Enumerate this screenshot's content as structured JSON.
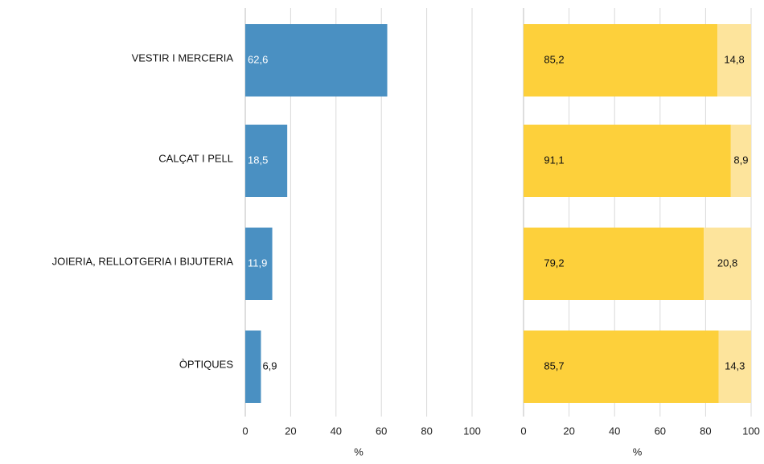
{
  "chart_data": [
    {
      "type": "bar",
      "orientation": "horizontal",
      "categories": [
        "VESTIR I MERCERIA",
        "CALÇAT I PELL",
        "JOIERIA, RELLOTGERIA I BIJUTERIA",
        "ÒPTIQUES"
      ],
      "values": [
        62.6,
        18.5,
        11.9,
        6.9
      ],
      "value_labels": [
        "62,6",
        "18,5",
        "11,9",
        "6,9"
      ],
      "xlim": [
        0,
        100
      ],
      "xticks": [
        "0",
        "20",
        "40",
        "60",
        "80",
        "100"
      ],
      "xlabel": "%",
      "color": "#4a90c2",
      "grid": "vertical"
    },
    {
      "type": "bar",
      "orientation": "horizontal",
      "stacked": true,
      "categories": [
        "VESTIR I MERCERIA",
        "CALÇAT I PELL",
        "JOIERIA, RELLOTGERIA I BIJUTERIA",
        "ÒPTIQUES"
      ],
      "series": [
        {
          "values": [
            85.2,
            91.1,
            79.2,
            85.7
          ],
          "labels": [
            "85,2",
            "91,1",
            "79,2",
            "85,7"
          ],
          "color": "#fdd03b"
        },
        {
          "values": [
            14.8,
            8.9,
            20.8,
            14.3
          ],
          "labels": [
            "14,8",
            "8,9",
            "20,8",
            "14,3"
          ],
          "color": "#fde49c"
        }
      ],
      "xlim": [
        0,
        100
      ],
      "xticks": [
        "0",
        "20",
        "40",
        "60",
        "80",
        "100"
      ],
      "xlabel": "%",
      "grid": "vertical"
    }
  ]
}
